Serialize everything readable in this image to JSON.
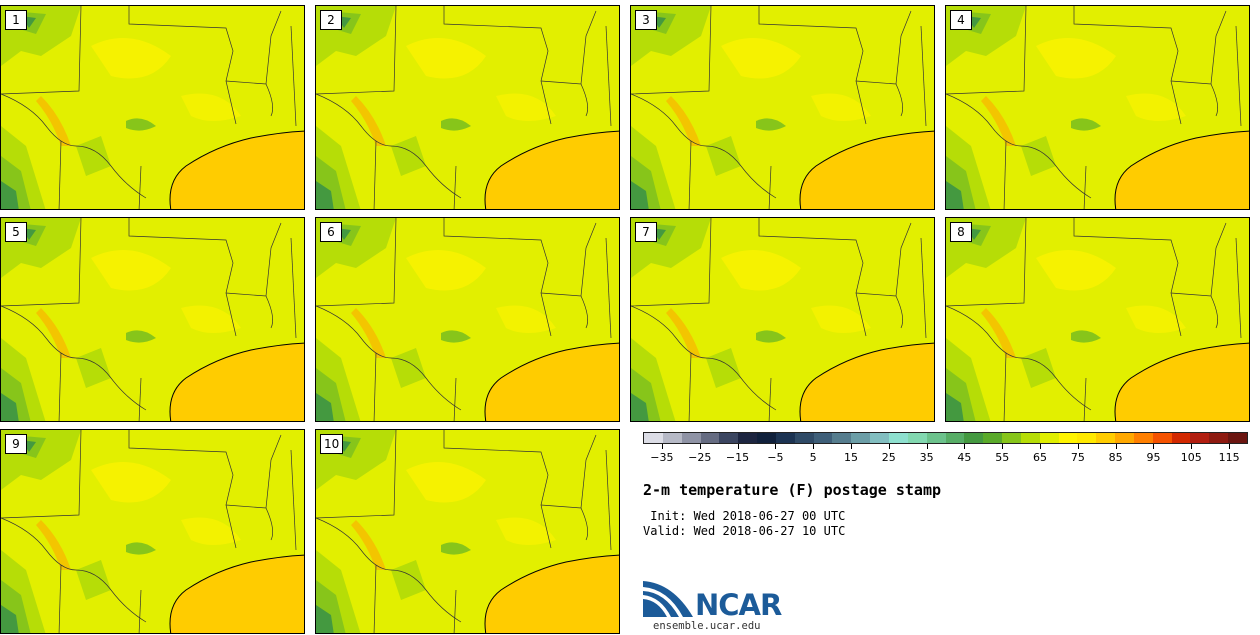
{
  "panels": [
    {
      "label": "1"
    },
    {
      "label": "2"
    },
    {
      "label": "3"
    },
    {
      "label": "4"
    },
    {
      "label": "5"
    },
    {
      "label": "6"
    },
    {
      "label": "7"
    },
    {
      "label": "8"
    },
    {
      "label": "9"
    },
    {
      "label": "10"
    }
  ],
  "colorbar": {
    "colors": [
      "#dcdde6",
      "#b6b9c6",
      "#8f93a5",
      "#666c82",
      "#3b4560",
      "#1d2540",
      "#10203b",
      "#1c3352",
      "#2f4a66",
      "#3f5f79",
      "#567d8e",
      "#6c9ea7",
      "#82bec0",
      "#8ee0cf",
      "#82d8b0",
      "#6cc28c",
      "#57ad66",
      "#449940",
      "#5aaa2a",
      "#87c51a",
      "#b6dd07",
      "#e0ef00",
      "#fff400",
      "#ffe900",
      "#ffcc00",
      "#ffa800",
      "#ff7f00",
      "#f55200",
      "#d22800",
      "#b21e10",
      "#8e1a10",
      "#6b1510"
    ],
    "ticks": [
      "−35",
      "−25",
      "−15",
      "−5",
      "5",
      "15",
      "25",
      "35",
      "45",
      "55",
      "65",
      "75",
      "85",
      "95",
      "105",
      "115"
    ]
  },
  "title": "2-m temperature (F) postage stamp",
  "init": " Init: Wed 2018-06-27 00 UTC",
  "valid": "Valid: Wed 2018-06-27 10 UTC",
  "logo": {
    "text": "NCAR",
    "url": "ensemble.ucar.edu",
    "color": "#1c5b99"
  },
  "map_colors": {
    "land": "#e2ef00",
    "warm": "#fff400",
    "gulf": "#ffcc00",
    "cool": "#b6dd07",
    "cooler": "#87c51a",
    "coolest": "#449940",
    "hot": "#ffa800",
    "lines": "#333333"
  }
}
